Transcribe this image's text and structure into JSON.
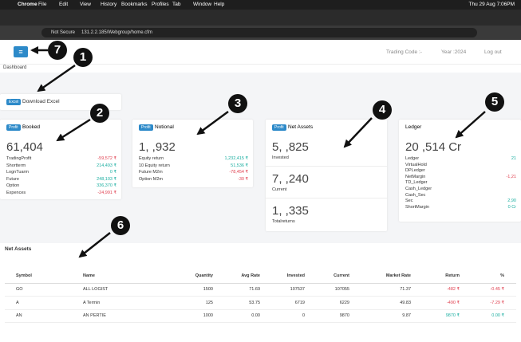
{
  "menubar": {
    "app": "Chrome",
    "menus": [
      "File",
      "Edit",
      "View",
      "History",
      "Bookmarks",
      "Profiles",
      "Tab",
      "Window",
      "Help"
    ],
    "clock": "Thu 29 Aug 7:06PM"
  },
  "browser": {
    "security": "Not Secure",
    "url": "131.2.2.185/Webgroup/home.cfm"
  },
  "header": {
    "trading_code": "Trading Code :-",
    "year": "Year :2024",
    "logout": "Log out",
    "breadcrumb": "Dashboard"
  },
  "excel": {
    "badge": "Excel",
    "label": "Download Excel"
  },
  "booked": {
    "badge": "Profit",
    "title": "Booked",
    "total": "61,404",
    "rows": [
      {
        "label": "TradingProfit",
        "value": "-59,572 ₹"
      },
      {
        "label": "Shortterm",
        "value": "214,493 ₹"
      },
      {
        "label": "LognTuarm",
        "value": "0 ₹"
      },
      {
        "label": "Future",
        "value": "248,103 ₹"
      },
      {
        "label": "Option",
        "value": "336,370 ₹"
      },
      {
        "label": "Expences",
        "value": "-24,991 ₹"
      }
    ]
  },
  "notional": {
    "badge": "Profit",
    "title": "Notional",
    "total": "1,  ,932",
    "rows": [
      {
        "label": "Equity return",
        "value": "1,232,415 ₹"
      },
      {
        "label": "10 Equity return",
        "value": "51,536 ₹"
      },
      {
        "label": "Future M2m",
        "value": "-78,454 ₹"
      },
      {
        "label": "Option M2m",
        "value": "-30 ₹"
      }
    ]
  },
  "net_assets_card": {
    "badge": "Profit",
    "title": "Net Assets",
    "blocks": [
      {
        "value": "5,  ,825",
        "label": "Invested"
      },
      {
        "value": "7,  ,240",
        "label": "Current"
      },
      {
        "value": "1,  ,335",
        "label": "Totalreturns"
      }
    ]
  },
  "ledger": {
    "title": "Ledger",
    "total": "20 ,514 Cr",
    "rows": [
      {
        "label": "Ledger",
        "value": "21"
      },
      {
        "label": "VirtualHold"
      },
      {
        "label": "DPLedger"
      },
      {
        "label": "NetMargin",
        "value": "-1,21"
      },
      {
        "label": "TD_Ledger"
      },
      {
        "label": "Cash_Ledger"
      },
      {
        "label": "Cash_Sec"
      },
      {
        "label": "Sec",
        "value": "2,90"
      },
      {
        "label": "ShortMargin",
        "value": "0 Cr"
      }
    ]
  },
  "holdings": {
    "title": "Net Assets",
    "columns": [
      "Symbol",
      "Name",
      "Quantity",
      "Avg Rate",
      "Invested",
      "Current",
      "Market Rate",
      "Return",
      "%"
    ],
    "rows": [
      [
        "GO",
        "ALL LOGIST",
        "1500",
        "71.69",
        "107537",
        "107055",
        "71.37",
        "-482 ₹",
        "-0.45 ₹"
      ],
      [
        "A",
        "A Termin",
        "125",
        "53.75",
        "6719",
        "6229",
        "49.83",
        "-490 ₹",
        "-7.29 ₹"
      ],
      [
        "AN",
        "AN PERTIE",
        "1000",
        "0.00",
        "0",
        "9870",
        "9.87",
        "9870 ₹",
        "0.00 ₹"
      ]
    ]
  },
  "annotations": [
    "1",
    "2",
    "3",
    "4",
    "5",
    "6",
    "7"
  ]
}
